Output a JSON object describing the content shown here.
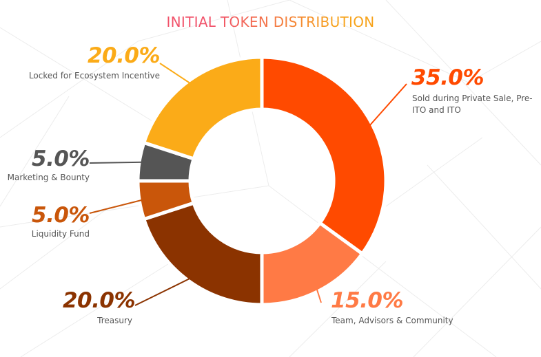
{
  "chart_data": {
    "type": "pie",
    "title": "INITIAL TOKEN DISTRIBUTION",
    "slices": [
      {
        "label": "Sold during Private Sale, Pre-ITO and ITO",
        "value": 35.0,
        "value_label": "35.0%",
        "color": "#ff4a00"
      },
      {
        "label": "Team, Advisors & Community",
        "value": 15.0,
        "value_label": "15.0%",
        "color": "#ff7a45"
      },
      {
        "label": "Treasury",
        "value": 20.0,
        "value_label": "20.0%",
        "color": "#8b3300"
      },
      {
        "label": "Liquidity Fund",
        "value": 5.0,
        "value_label": "5.0%",
        "color": "#c9560a"
      },
      {
        "label": "Marketing & Bounty",
        "value": 5.0,
        "value_label": "5.0%",
        "color": "#555555"
      },
      {
        "label": "Locked for Ecosystem Incentive",
        "value": 20.0,
        "value_label": "20.0%",
        "color": "#fbab18"
      }
    ],
    "legend": "none"
  }
}
